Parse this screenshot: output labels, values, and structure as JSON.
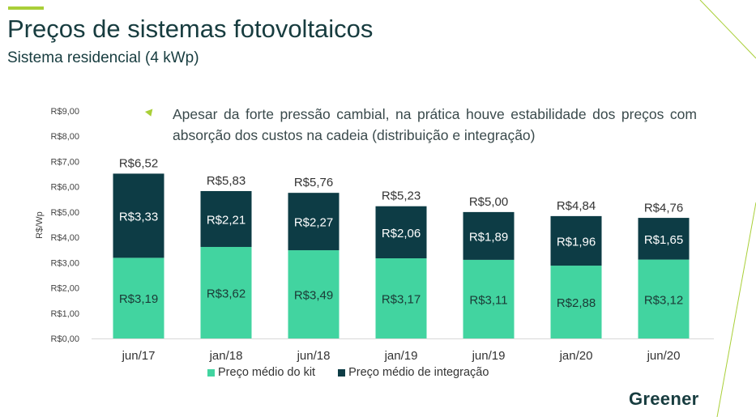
{
  "header": {
    "title": "Preços de sistemas fotovoltaicos",
    "subtitle": "Sistema residencial (4 kWp)"
  },
  "note": "Apesar da forte pressão cambial, na prática houve estabilidade dos preços com absorção dos custos na cadeia (distribuição e integração)",
  "logo": "Greener",
  "colors": {
    "kit": "#42d4a0",
    "integration": "#0d3c45",
    "accent": "#a9cf38",
    "title": "#173c3f"
  },
  "chart_data": {
    "type": "bar",
    "stacked": true,
    "categories": [
      "jun/17",
      "jan/18",
      "jun/18",
      "jan/19",
      "jun/19",
      "jan/20",
      "jun/20"
    ],
    "series": [
      {
        "name": "Preço médio do kit",
        "values": [
          3.19,
          3.62,
          3.49,
          3.17,
          3.11,
          2.88,
          3.12
        ],
        "labels": [
          "R$3,19",
          "R$3,62",
          "R$3,49",
          "R$3,17",
          "R$3,11",
          "R$2,88",
          "R$3,12"
        ]
      },
      {
        "name": "Preço médio de integração",
        "values": [
          3.33,
          2.21,
          2.27,
          2.06,
          1.89,
          1.96,
          1.65
        ],
        "labels": [
          "R$3,33",
          "R$2,21",
          "R$2,27",
          "R$2,06",
          "R$1,89",
          "R$1,96",
          "R$1,65"
        ]
      }
    ],
    "totals": [
      6.52,
      5.83,
      5.76,
      5.23,
      5.0,
      4.84,
      4.76
    ],
    "total_labels": [
      "R$6,52",
      "R$5,83",
      "R$5,76",
      "R$5,23",
      "R$5,00",
      "R$4,84",
      "R$4,76"
    ],
    "ylabel": "R$/Wp",
    "ylim": [
      0,
      9
    ],
    "yticks": [
      "R$0,00",
      "R$1,00",
      "R$2,00",
      "R$3,00",
      "R$4,00",
      "R$5,00",
      "R$6,00",
      "R$7,00",
      "R$8,00",
      "R$9,00"
    ],
    "grid": false,
    "legend_position": "bottom"
  }
}
